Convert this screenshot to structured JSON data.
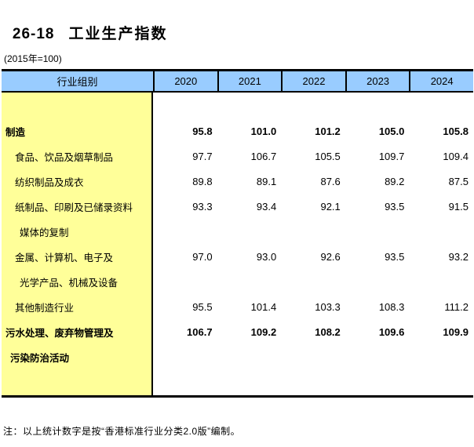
{
  "page": {
    "title_number": "26-18",
    "title_text": "工业生产指数",
    "subtitle": "(2015年=100)",
    "note": "注：以上统计数字是按“香港标准行业分类2.0版”编制。"
  },
  "table": {
    "header": {
      "industry_group": "行业组别",
      "years": [
        "2020",
        "2021",
        "2022",
        "2023",
        "2024"
      ]
    },
    "rows": [
      {
        "label": "制造",
        "bold": true,
        "values": [
          "95.8",
          "101.0",
          "101.2",
          "105.0",
          "105.8"
        ]
      },
      {
        "label": "食品、饮品及烟草制品",
        "bold": false,
        "values": [
          "97.7",
          "106.7",
          "105.5",
          "109.7",
          "109.4"
        ]
      },
      {
        "label": "纺织制品及成衣",
        "bold": false,
        "values": [
          "89.8",
          "89.1",
          "87.6",
          "89.2",
          "87.5"
        ]
      },
      {
        "label": "纸制品、印刷及已储录资料",
        "label2": "媒体的复制",
        "bold": false,
        "values": [
          "93.3",
          "93.4",
          "92.1",
          "93.5",
          "91.5"
        ]
      },
      {
        "label": "金属、计算机、电子及",
        "label2": "光学产品、机械及设备",
        "bold": false,
        "values": [
          "97.0",
          "93.0",
          "92.6",
          "93.5",
          "93.2"
        ]
      },
      {
        "label": "其他制造行业",
        "bold": false,
        "values": [
          "95.5",
          "101.4",
          "103.3",
          "108.3",
          "111.2"
        ]
      },
      {
        "label": "污水处理、废弃物管理及",
        "label2": "污染防治活动",
        "bold": true,
        "values": [
          "106.7",
          "109.2",
          "108.2",
          "109.6",
          "109.9"
        ]
      }
    ],
    "colors": {
      "header_bg": "#99CCFF",
      "label_column_bg": "#FFFF99",
      "border": "#000000"
    }
  }
}
